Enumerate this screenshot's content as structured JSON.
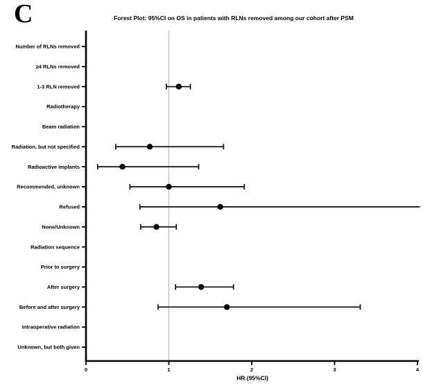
{
  "panel_label": "C",
  "chart_data": {
    "type": "forest",
    "title": "Forest Plot: 95%CI on OS in patients with RLNs removed among our cohort after PSM",
    "xlabel": "HR (95%CI)",
    "xlim": [
      0,
      4
    ],
    "xticks": [
      0,
      1,
      2,
      3,
      4
    ],
    "reference_line_x": 1,
    "grid": false,
    "legend": "none",
    "rows": [
      {
        "label": "Number of RLNs removed",
        "hr": null,
        "lo": null,
        "hi": null
      },
      {
        "label": "≥4 RLNs removed",
        "hr": null,
        "lo": null,
        "hi": null
      },
      {
        "label": "1-3 RLN removed",
        "hr": 1.12,
        "lo": 0.97,
        "hi": 1.26
      },
      {
        "label": "Radiotherapy",
        "hr": null,
        "lo": null,
        "hi": null
      },
      {
        "label": "Beam radiation",
        "hr": null,
        "lo": null,
        "hi": null
      },
      {
        "label": "Radiation, but not specified",
        "hr": 0.77,
        "lo": 0.36,
        "hi": 1.66
      },
      {
        "label": "Radioactive implants",
        "hr": 0.44,
        "lo": 0.14,
        "hi": 1.36
      },
      {
        "label": "Recommended, unknown",
        "hr": 1.0,
        "lo": 0.53,
        "hi": 1.91
      },
      {
        "label": "Refused",
        "hr": 1.62,
        "lo": 0.65,
        "hi": 4.03,
        "hi_clipped": true
      },
      {
        "label": "None/Unknown",
        "hr": 0.85,
        "lo": 0.66,
        "hi": 1.09
      },
      {
        "label": "Radiation sequence",
        "hr": null,
        "lo": null,
        "hi": null
      },
      {
        "label": "Prior to surgery",
        "hr": null,
        "lo": null,
        "hi": null
      },
      {
        "label": "After surgery",
        "hr": 1.39,
        "lo": 1.08,
        "hi": 1.78
      },
      {
        "label": "Before and after surgery",
        "hr": 1.7,
        "lo": 0.87,
        "hi": 3.31
      },
      {
        "label": "Intraoperative radiation",
        "hr": null,
        "lo": null,
        "hi": null
      },
      {
        "label": "Unknown, but both given",
        "hr": null,
        "lo": null,
        "hi": null
      }
    ],
    "colors": {
      "marker": "#000000",
      "ci_line": "#1a1a1a",
      "axis": "#000000",
      "reference_line": "#c2c2c2",
      "background": "#ffffff"
    }
  }
}
